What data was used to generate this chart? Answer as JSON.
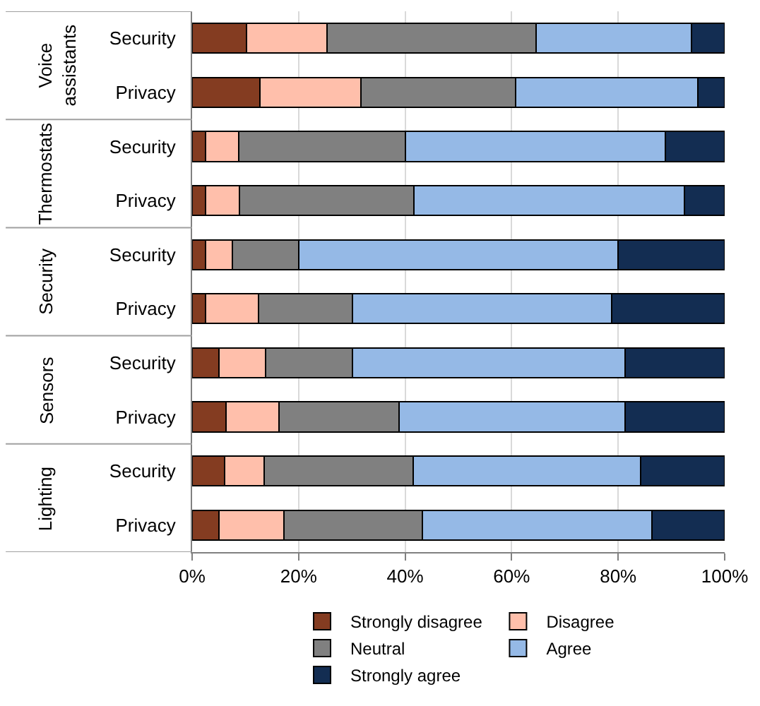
{
  "chart_data": {
    "type": "bar",
    "orientation": "horizontal",
    "stacked": true,
    "categories": [
      "Security",
      "Privacy",
      "Security",
      "Privacy",
      "Security",
      "Privacy",
      "Security",
      "Privacy",
      "Security",
      "Privacy"
    ],
    "annotations": [
      "Voice\nassistants",
      "Thermostats",
      "Security",
      "Sensors",
      "Lighting"
    ],
    "series": [
      {
        "name": "Strongly disagree",
        "color": "#843c21",
        "values": [
          10.2,
          12.7,
          2.5,
          2.5,
          2.5,
          2.5,
          5.0,
          6.3,
          6.1,
          5.0
        ]
      },
      {
        "name": "Disagree",
        "color": "#ffbfab",
        "values": [
          15.1,
          19.0,
          6.3,
          6.4,
          5.0,
          10.0,
          8.8,
          10.0,
          7.4,
          12.3
        ]
      },
      {
        "name": "Neutral",
        "color": "#808080",
        "values": [
          39.3,
          29.0,
          31.2,
          32.8,
          12.5,
          17.6,
          16.3,
          22.6,
          28.0,
          25.9
        ]
      },
      {
        "name": "Agree",
        "color": "#95b9e6",
        "values": [
          29.1,
          34.3,
          48.8,
          50.7,
          60.0,
          48.7,
          51.2,
          42.4,
          42.7,
          43.2
        ]
      },
      {
        "name": "Strongly agree",
        "color": "#132d52",
        "values": [
          6.3,
          5.0,
          11.2,
          7.6,
          20.0,
          21.2,
          18.7,
          18.7,
          15.8,
          13.6
        ]
      }
    ],
    "xlim": [
      0,
      100
    ],
    "xticks": [
      {
        "value": 0,
        "label": "0%"
      },
      {
        "value": 20,
        "label": "20%"
      },
      {
        "value": 40,
        "label": "40%"
      },
      {
        "value": 60,
        "label": "60%"
      },
      {
        "value": 80,
        "label": "80%"
      },
      {
        "value": 100,
        "label": "100%"
      }
    ],
    "grid": "x",
    "legend": "bottom"
  }
}
